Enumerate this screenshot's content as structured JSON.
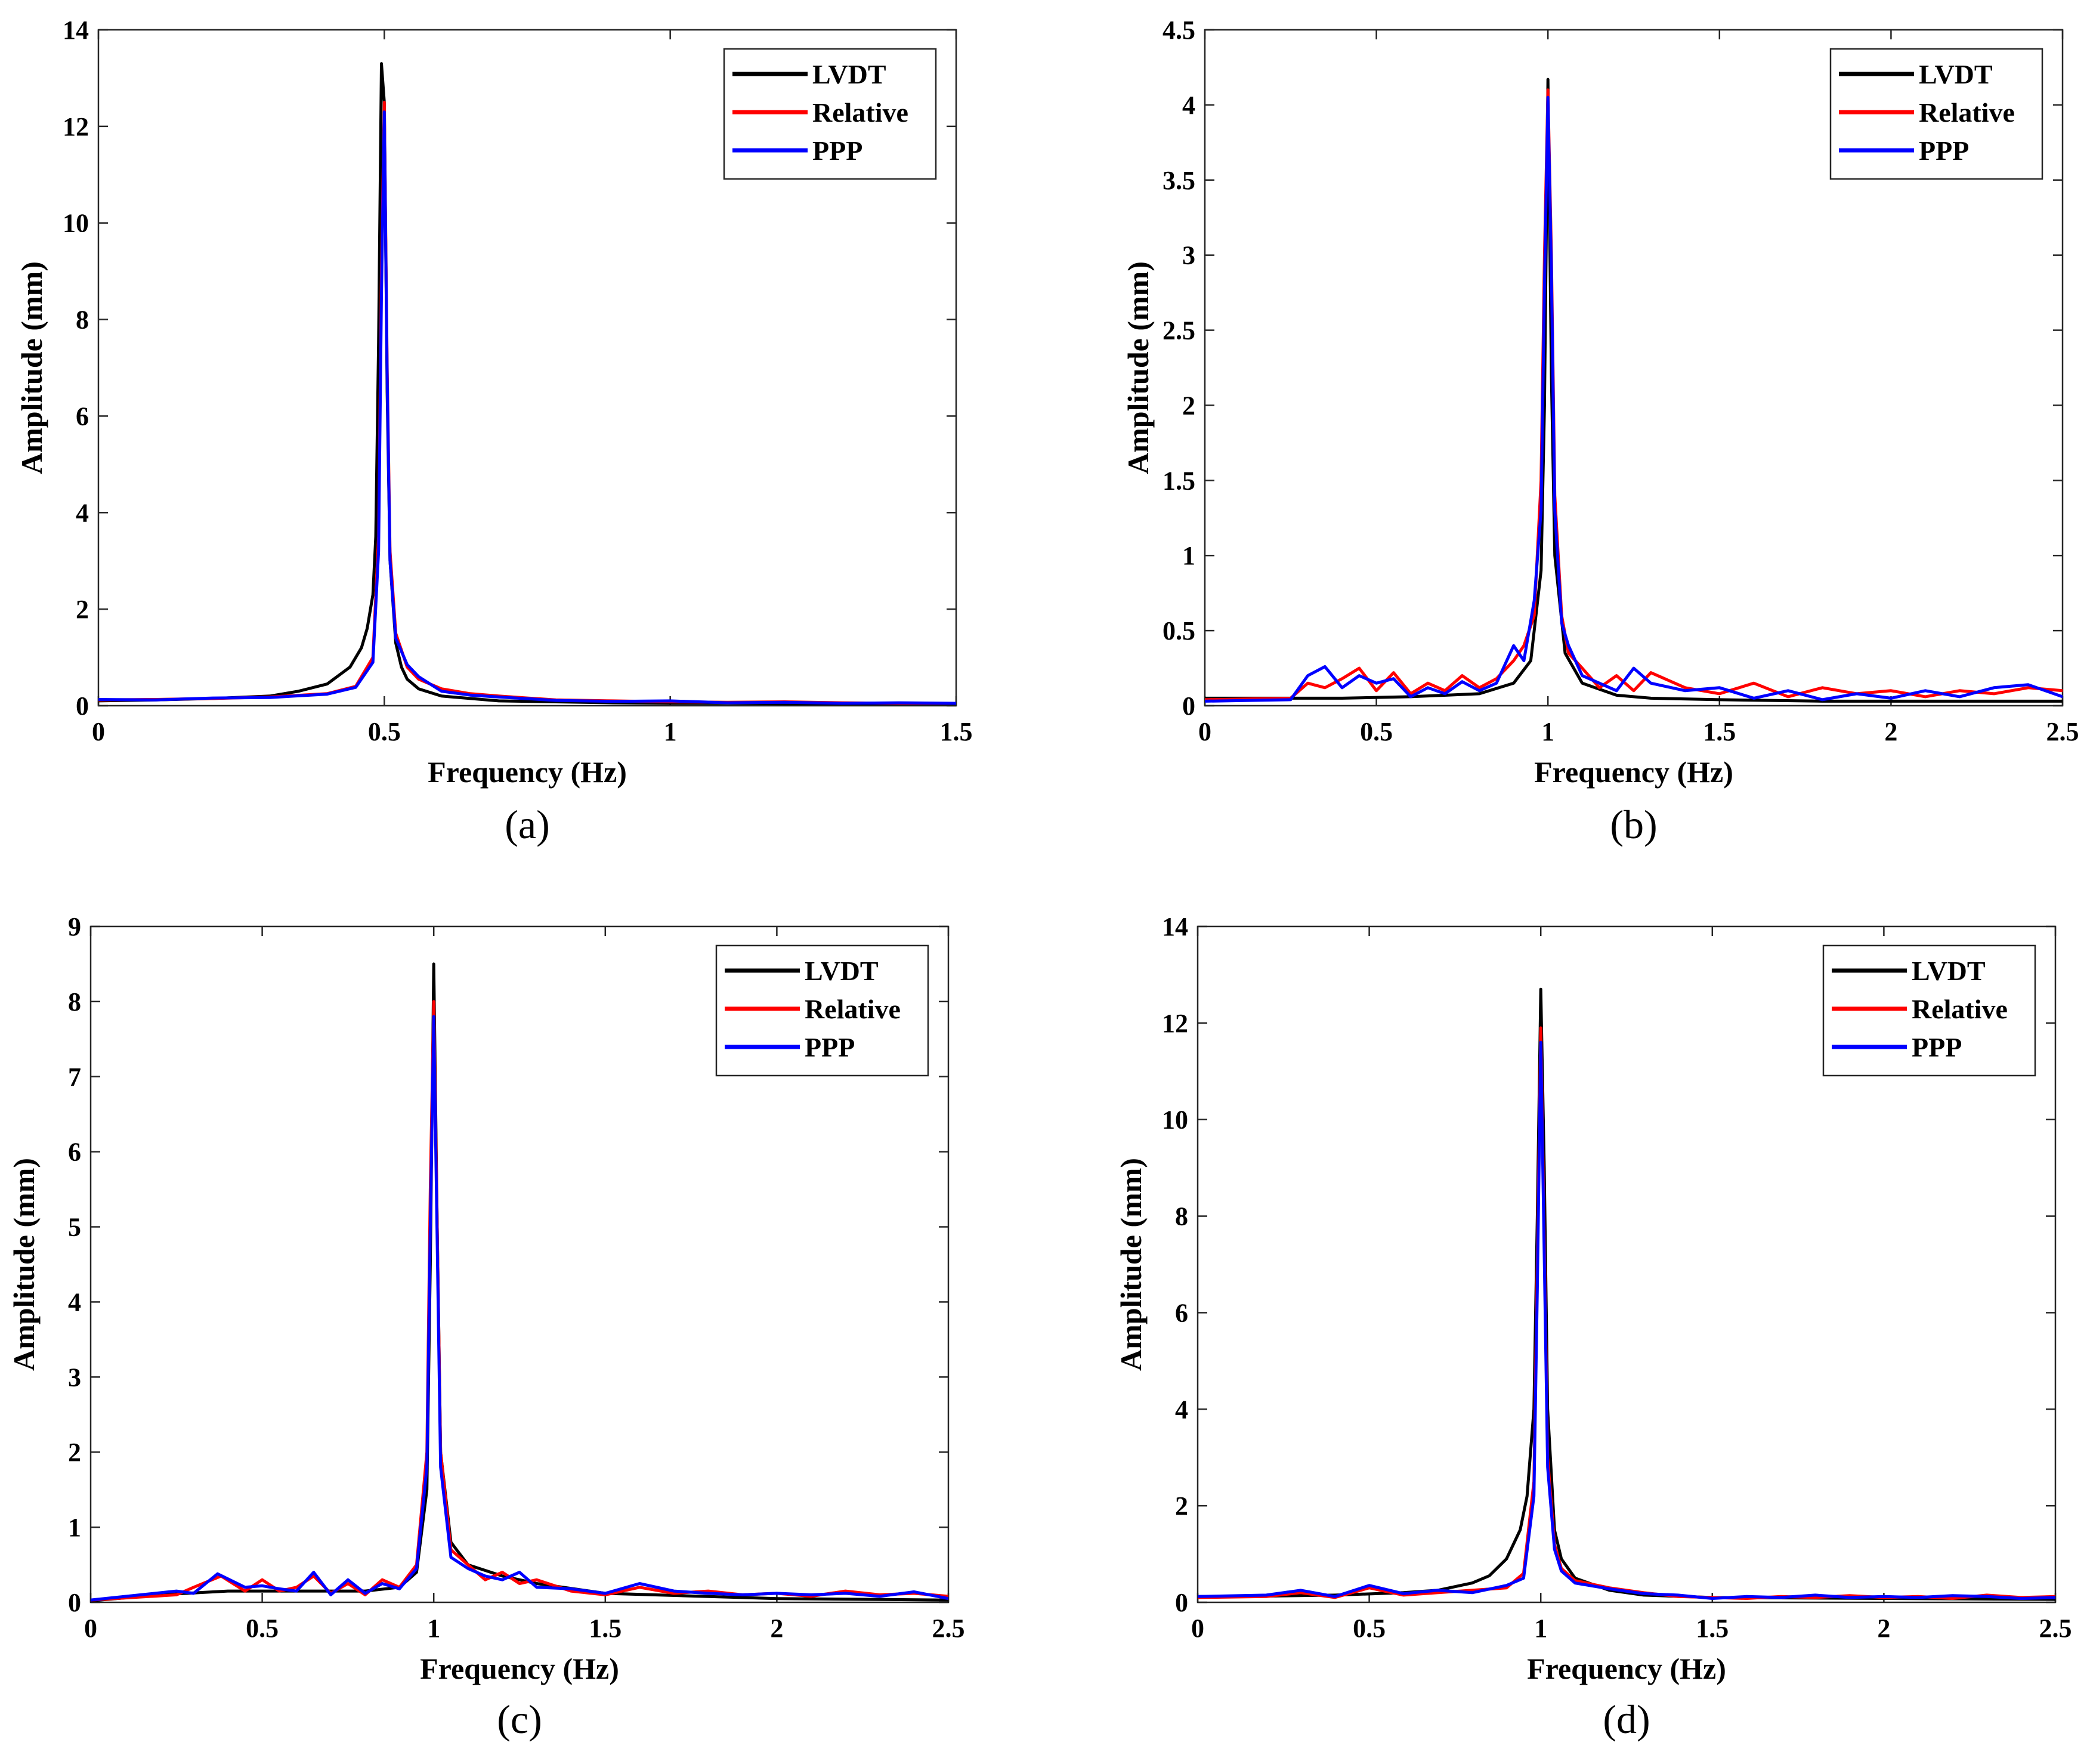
{
  "chart_data": [
    {
      "type": "line",
      "panel_label": "(a)",
      "xlabel": "Frequency (Hz)",
      "ylabel": "Amplitude (mm)",
      "xlim": [
        0,
        1.5
      ],
      "ylim": [
        0,
        14
      ],
      "xticks": [
        0,
        0.5,
        1,
        1.5
      ],
      "xtick_labels": [
        "0",
        "0.5",
        "1",
        "1.5"
      ],
      "yticks": [
        0,
        2,
        4,
        6,
        8,
        10,
        12,
        14
      ],
      "ytick_labels": [
        "0",
        "2",
        "4",
        "6",
        "8",
        "10",
        "12",
        "14"
      ],
      "legend_position": "top-right",
      "series": [
        {
          "name": "LVDT",
          "color": "#000000",
          "x": [
            0,
            0.1,
            0.2,
            0.3,
            0.35,
            0.4,
            0.44,
            0.46,
            0.47,
            0.48,
            0.485,
            0.49,
            0.495,
            0.5,
            0.505,
            0.51,
            0.52,
            0.53,
            0.54,
            0.56,
            0.6,
            0.7,
            0.8,
            0.9,
            1.0,
            1.1,
            1.2,
            1.3,
            1.4,
            1.5
          ],
          "y": [
            0.1,
            0.12,
            0.15,
            0.2,
            0.3,
            0.45,
            0.8,
            1.2,
            1.6,
            2.3,
            3.5,
            7.5,
            13.3,
            12.5,
            6.5,
            3.0,
            1.3,
            0.8,
            0.55,
            0.35,
            0.2,
            0.1,
            0.08,
            0.06,
            0.05,
            0.05,
            0.04,
            0.04,
            0.04,
            0.04
          ]
        },
        {
          "name": "Relative",
          "color": "#ff0000",
          "x": [
            0,
            0.1,
            0.2,
            0.3,
            0.4,
            0.45,
            0.48,
            0.49,
            0.495,
            0.5,
            0.505,
            0.51,
            0.52,
            0.54,
            0.56,
            0.6,
            0.65,
            0.7,
            0.8,
            0.9,
            1.0,
            1.1,
            1.2,
            1.3,
            1.4,
            1.5
          ],
          "y": [
            0.12,
            0.13,
            0.15,
            0.18,
            0.25,
            0.4,
            1.0,
            3.5,
            9.0,
            12.5,
            7.0,
            3.2,
            1.5,
            0.8,
            0.55,
            0.35,
            0.25,
            0.2,
            0.12,
            0.1,
            0.08,
            0.07,
            0.08,
            0.06,
            0.05,
            0.05
          ]
        },
        {
          "name": "PPP",
          "color": "#0000ff",
          "x": [
            0,
            0.1,
            0.2,
            0.3,
            0.4,
            0.45,
            0.48,
            0.49,
            0.495,
            0.5,
            0.505,
            0.51,
            0.52,
            0.54,
            0.56,
            0.6,
            0.65,
            0.7,
            0.8,
            0.9,
            1.0,
            1.1,
            1.2,
            1.3,
            1.4,
            1.5
          ],
          "y": [
            0.13,
            0.12,
            0.16,
            0.17,
            0.24,
            0.38,
            0.9,
            3.2,
            8.5,
            12.3,
            6.8,
            3.0,
            1.4,
            0.85,
            0.6,
            0.3,
            0.22,
            0.18,
            0.11,
            0.09,
            0.1,
            0.06,
            0.07,
            0.05,
            0.06,
            0.05
          ]
        }
      ]
    },
    {
      "type": "line",
      "panel_label": "(b)",
      "xlabel": "Frequency (Hz)",
      "ylabel": "Amplitude (mm)",
      "xlim": [
        0,
        2.5
      ],
      "ylim": [
        0,
        4.5
      ],
      "xticks": [
        0,
        0.5,
        1,
        1.5,
        2,
        2.5
      ],
      "xtick_labels": [
        "0",
        "0.5",
        "1",
        "1.5",
        "2",
        "2.5"
      ],
      "yticks": [
        0,
        0.5,
        1,
        1.5,
        2,
        2.5,
        3,
        3.5,
        4,
        4.5
      ],
      "ytick_labels": [
        "0",
        "0.5",
        "1",
        "1.5",
        "2",
        "2.5",
        "3",
        "3.5",
        "4",
        "4.5"
      ],
      "legend_position": "top-right",
      "series": [
        {
          "name": "LVDT",
          "color": "#000000",
          "x": [
            0,
            0.2,
            0.4,
            0.6,
            0.8,
            0.9,
            0.95,
            0.98,
            0.99,
            1.0,
            1.01,
            1.02,
            1.05,
            1.1,
            1.2,
            1.3,
            1.5,
            1.8,
            2.0,
            2.5
          ],
          "y": [
            0.05,
            0.05,
            0.05,
            0.06,
            0.08,
            0.15,
            0.3,
            0.9,
            2.0,
            4.17,
            2.2,
            1.0,
            0.35,
            0.15,
            0.07,
            0.05,
            0.04,
            0.03,
            0.03,
            0.03
          ]
        },
        {
          "name": "Relative",
          "color": "#ff0000",
          "x": [
            0,
            0.25,
            0.3,
            0.35,
            0.4,
            0.45,
            0.5,
            0.55,
            0.6,
            0.65,
            0.7,
            0.75,
            0.8,
            0.85,
            0.9,
            0.93,
            0.96,
            0.98,
            0.99,
            1.0,
            1.01,
            1.02,
            1.04,
            1.06,
            1.1,
            1.15,
            1.2,
            1.25,
            1.3,
            1.4,
            1.5,
            1.6,
            1.7,
            1.8,
            1.9,
            2.0,
            2.1,
            2.2,
            2.3,
            2.4,
            2.5
          ],
          "y": [
            0.04,
            0.05,
            0.15,
            0.12,
            0.18,
            0.25,
            0.1,
            0.22,
            0.08,
            0.15,
            0.1,
            0.2,
            0.12,
            0.18,
            0.3,
            0.4,
            0.6,
            1.5,
            3.0,
            4.1,
            3.0,
            1.4,
            0.6,
            0.35,
            0.25,
            0.12,
            0.2,
            0.1,
            0.22,
            0.12,
            0.08,
            0.15,
            0.06,
            0.12,
            0.08,
            0.1,
            0.06,
            0.1,
            0.08,
            0.12,
            0.1
          ]
        },
        {
          "name": "PPP",
          "color": "#0000ff",
          "x": [
            0,
            0.25,
            0.3,
            0.35,
            0.4,
            0.45,
            0.5,
            0.55,
            0.6,
            0.65,
            0.7,
            0.75,
            0.8,
            0.85,
            0.9,
            0.93,
            0.96,
            0.98,
            0.99,
            1.0,
            1.01,
            1.02,
            1.04,
            1.06,
            1.1,
            1.15,
            1.2,
            1.25,
            1.3,
            1.4,
            1.5,
            1.6,
            1.7,
            1.8,
            1.9,
            2.0,
            2.1,
            2.2,
            2.3,
            2.4,
            2.5
          ],
          "y": [
            0.03,
            0.04,
            0.2,
            0.26,
            0.12,
            0.2,
            0.15,
            0.18,
            0.06,
            0.12,
            0.08,
            0.16,
            0.1,
            0.15,
            0.4,
            0.3,
            0.7,
            1.3,
            2.8,
            4.05,
            2.9,
            1.3,
            0.55,
            0.4,
            0.2,
            0.15,
            0.1,
            0.25,
            0.15,
            0.1,
            0.12,
            0.05,
            0.1,
            0.04,
            0.08,
            0.05,
            0.1,
            0.06,
            0.12,
            0.14,
            0.06
          ]
        }
      ]
    },
    {
      "type": "line",
      "panel_label": "(c)",
      "xlabel": "Frequency (Hz)",
      "ylabel": "Amplitude (mm)",
      "xlim": [
        0,
        2.5
      ],
      "ylim": [
        0,
        9
      ],
      "xticks": [
        0,
        0.5,
        1,
        1.5,
        2,
        2.5
      ],
      "xtick_labels": [
        "0",
        "0.5",
        "1",
        "1.5",
        "2",
        "2.5"
      ],
      "yticks": [
        0,
        1,
        2,
        3,
        4,
        5,
        6,
        7,
        8,
        9
      ],
      "ytick_labels": [
        "0",
        "1",
        "2",
        "3",
        "4",
        "5",
        "6",
        "7",
        "8",
        "9"
      ],
      "legend_position": "top-right",
      "series": [
        {
          "name": "LVDT",
          "color": "#000000",
          "x": [
            0,
            0.2,
            0.4,
            0.6,
            0.8,
            0.9,
            0.95,
            0.98,
            0.99,
            1.0,
            1.01,
            1.02,
            1.05,
            1.1,
            1.2,
            1.3,
            1.5,
            2.0,
            2.5
          ],
          "y": [
            0.02,
            0.1,
            0.15,
            0.15,
            0.15,
            0.2,
            0.4,
            1.5,
            4.5,
            8.5,
            5.0,
            2.0,
            0.8,
            0.5,
            0.35,
            0.25,
            0.12,
            0.05,
            0.03
          ]
        },
        {
          "name": "Relative",
          "color": "#ff0000",
          "x": [
            0,
            0.25,
            0.3,
            0.38,
            0.45,
            0.5,
            0.55,
            0.6,
            0.65,
            0.7,
            0.75,
            0.8,
            0.85,
            0.9,
            0.95,
            0.98,
            0.99,
            1.0,
            1.01,
            1.02,
            1.05,
            1.1,
            1.15,
            1.2,
            1.25,
            1.3,
            1.4,
            1.5,
            1.6,
            1.7,
            1.8,
            1.9,
            2.0,
            2.1,
            2.2,
            2.3,
            2.4,
            2.5
          ],
          "y": [
            0.03,
            0.1,
            0.2,
            0.35,
            0.15,
            0.3,
            0.15,
            0.2,
            0.35,
            0.12,
            0.25,
            0.1,
            0.3,
            0.2,
            0.5,
            2.0,
            5.5,
            8.0,
            5.0,
            2.0,
            0.7,
            0.5,
            0.3,
            0.4,
            0.25,
            0.3,
            0.15,
            0.1,
            0.2,
            0.12,
            0.15,
            0.1,
            0.12,
            0.08,
            0.15,
            0.1,
            0.12,
            0.08
          ]
        },
        {
          "name": "PPP",
          "color": "#0000ff",
          "x": [
            0,
            0.25,
            0.3,
            0.37,
            0.45,
            0.5,
            0.55,
            0.6,
            0.65,
            0.7,
            0.75,
            0.8,
            0.85,
            0.9,
            0.95,
            0.98,
            0.99,
            1.0,
            1.01,
            1.02,
            1.05,
            1.1,
            1.15,
            1.2,
            1.25,
            1.3,
            1.4,
            1.5,
            1.6,
            1.7,
            1.8,
            1.9,
            2.0,
            2.1,
            2.2,
            2.3,
            2.4,
            2.5
          ],
          "y": [
            0.03,
            0.15,
            0.12,
            0.38,
            0.2,
            0.22,
            0.18,
            0.15,
            0.4,
            0.1,
            0.3,
            0.12,
            0.25,
            0.18,
            0.45,
            1.8,
            5.0,
            7.8,
            4.8,
            1.8,
            0.6,
            0.45,
            0.35,
            0.3,
            0.4,
            0.2,
            0.18,
            0.12,
            0.25,
            0.15,
            0.12,
            0.1,
            0.12,
            0.1,
            0.12,
            0.08,
            0.14,
            0.05
          ]
        }
      ]
    },
    {
      "type": "line",
      "panel_label": "(d)",
      "xlabel": "Frequency (Hz)",
      "ylabel": "Amplitude (mm)",
      "xlim": [
        0,
        2.5
      ],
      "ylim": [
        0,
        14
      ],
      "xticks": [
        0,
        0.5,
        1,
        1.5,
        2,
        2.5
      ],
      "xtick_labels": [
        "0",
        "0.5",
        "1",
        "1.5",
        "2",
        "2.5"
      ],
      "yticks": [
        0,
        2,
        4,
        6,
        8,
        10,
        12,
        14
      ],
      "ytick_labels": [
        "0",
        "2",
        "4",
        "6",
        "8",
        "10",
        "12",
        "14"
      ],
      "legend_position": "top-right",
      "series": [
        {
          "name": "LVDT",
          "color": "#000000",
          "x": [
            0,
            0.2,
            0.4,
            0.6,
            0.7,
            0.8,
            0.85,
            0.9,
            0.94,
            0.96,
            0.98,
            0.99,
            1.0,
            1.01,
            1.02,
            1.04,
            1.06,
            1.1,
            1.2,
            1.3,
            1.5,
            2.0,
            2.5
          ],
          "y": [
            0.12,
            0.13,
            0.15,
            0.2,
            0.25,
            0.4,
            0.55,
            0.9,
            1.5,
            2.2,
            4.0,
            8.0,
            12.7,
            9.0,
            4.0,
            1.5,
            0.9,
            0.5,
            0.25,
            0.15,
            0.1,
            0.08,
            0.06
          ]
        },
        {
          "name": "Relative",
          "color": "#ff0000",
          "x": [
            0,
            0.2,
            0.3,
            0.4,
            0.5,
            0.6,
            0.7,
            0.8,
            0.9,
            0.95,
            0.98,
            0.99,
            1.0,
            1.01,
            1.02,
            1.04,
            1.06,
            1.1,
            1.2,
            1.3,
            1.4,
            1.5,
            1.6,
            1.7,
            1.8,
            1.9,
            2.0,
            2.1,
            2.2,
            2.3,
            2.4,
            2.5
          ],
          "y": [
            0.1,
            0.12,
            0.2,
            0.1,
            0.3,
            0.15,
            0.2,
            0.25,
            0.3,
            0.6,
            2.5,
            7.0,
            11.9,
            7.5,
            3.0,
            1.2,
            0.7,
            0.45,
            0.3,
            0.2,
            0.12,
            0.1,
            0.08,
            0.12,
            0.1,
            0.14,
            0.1,
            0.12,
            0.08,
            0.15,
            0.1,
            0.12
          ]
        },
        {
          "name": "PPP",
          "color": "#0000ff",
          "x": [
            0,
            0.2,
            0.3,
            0.4,
            0.5,
            0.6,
            0.7,
            0.8,
            0.9,
            0.95,
            0.98,
            0.99,
            1.0,
            1.01,
            1.02,
            1.04,
            1.06,
            1.1,
            1.2,
            1.3,
            1.4,
            1.5,
            1.6,
            1.7,
            1.8,
            1.9,
            2.0,
            2.1,
            2.2,
            2.3,
            2.4,
            2.5
          ],
          "y": [
            0.12,
            0.15,
            0.25,
            0.12,
            0.35,
            0.18,
            0.25,
            0.2,
            0.35,
            0.5,
            2.2,
            6.5,
            11.6,
            7.2,
            2.8,
            1.1,
            0.65,
            0.4,
            0.28,
            0.18,
            0.15,
            0.08,
            0.12,
            0.1,
            0.15,
            0.1,
            0.12,
            0.1,
            0.14,
            0.12,
            0.08,
            0.1
          ]
        }
      ]
    }
  ]
}
